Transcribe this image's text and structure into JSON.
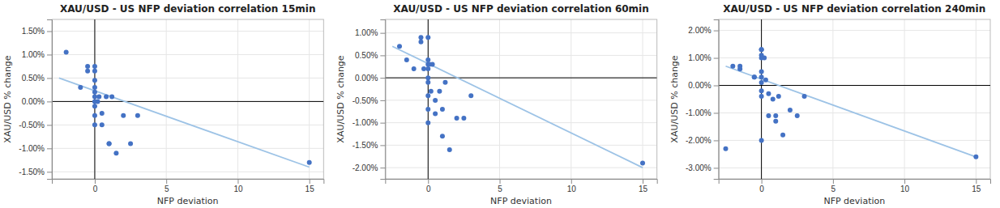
{
  "chart_data": [
    {
      "type": "scatter",
      "title": "XAU/USD - US NFP deviation correlation 15min",
      "xlabel": "NFP deviation",
      "ylabel": "XAU/USD % change",
      "xlim": [
        -3,
        16
      ],
      "ylim": [
        -0.0165,
        0.0175
      ],
      "xticks": [
        0,
        5,
        10,
        15
      ],
      "yticks": [
        {
          "value": -0.015,
          "label": "-1.50%"
        },
        {
          "value": -0.01,
          "label": "-1.00%"
        },
        {
          "value": -0.005,
          "label": "-0.50%"
        },
        {
          "value": 0.0,
          "label": "0.00%"
        },
        {
          "value": 0.005,
          "label": "0.50%"
        },
        {
          "value": 0.01,
          "label": "1.00%"
        },
        {
          "value": 0.015,
          "label": "1.50%"
        }
      ],
      "grid": true,
      "series": [
        {
          "type": "scatter",
          "color": "#4472C4",
          "x": [
            -2.0,
            -1.0,
            -0.5,
            -0.5,
            0.0,
            0.0,
            0.0,
            0.0,
            0.0,
            0.0,
            0.0,
            0.0,
            0.0,
            0.0,
            0.2,
            0.3,
            0.5,
            0.5,
            0.8,
            1.0,
            1.0,
            1.2,
            1.5,
            2.0,
            2.5,
            3.0,
            15.0
          ],
          "values": [
            0.0105,
            0.003,
            0.0075,
            0.0065,
            0.0075,
            0.0065,
            0.0045,
            0.003,
            0.002,
            0.001,
            0.0,
            -0.001,
            -0.003,
            -0.005,
            0.0,
            0.001,
            -0.0025,
            -0.005,
            0.001,
            -0.009,
            -0.009,
            0.001,
            -0.011,
            -0.003,
            -0.009,
            -0.003,
            -0.013
          ]
        },
        {
          "type": "line",
          "color": "#9DC3E6",
          "x": [
            -2.5,
            15
          ],
          "values": [
            0.005,
            -0.014
          ]
        }
      ]
    },
    {
      "type": "scatter",
      "title": "XAU/USD - US NFP deviation correlation 60min",
      "xlabel": "NFP deviation",
      "ylabel": "XAU/USD % change",
      "xlim": [
        -3,
        16
      ],
      "ylim": [
        -0.0225,
        0.013
      ],
      "xticks": [
        0,
        5,
        10,
        15
      ],
      "yticks": [
        {
          "value": -0.02,
          "label": "-2.00%"
        },
        {
          "value": -0.015,
          "label": "-1.50%"
        },
        {
          "value": -0.01,
          "label": "-1.00%"
        },
        {
          "value": -0.005,
          "label": "-0.50%"
        },
        {
          "value": 0.0,
          "label": "0.00%"
        },
        {
          "value": 0.005,
          "label": "0.50%"
        },
        {
          "value": 0.01,
          "label": "1.00%"
        }
      ],
      "grid": true,
      "series": [
        {
          "type": "scatter",
          "color": "#4472C4",
          "x": [
            -2.0,
            -1.5,
            -1.0,
            -0.5,
            -0.5,
            -0.3,
            0.0,
            0.0,
            0.0,
            0.0,
            0.0,
            0.0,
            0.0,
            0.0,
            0.0,
            0.1,
            0.2,
            0.3,
            0.5,
            0.5,
            0.8,
            1.0,
            1.0,
            1.2,
            1.5,
            2.0,
            2.5,
            3.0,
            15.0
          ],
          "values": [
            0.007,
            0.004,
            0.002,
            0.009,
            0.008,
            0.002,
            0.009,
            0.004,
            0.003,
            0.002,
            0.0,
            -0.001,
            -0.004,
            -0.007,
            -0.01,
            0.003,
            -0.003,
            0.003,
            -0.005,
            -0.008,
            -0.003,
            -0.007,
            -0.013,
            -0.001,
            -0.016,
            -0.009,
            -0.009,
            -0.004,
            -0.019
          ]
        },
        {
          "type": "line",
          "color": "#9DC3E6",
          "x": [
            -2.5,
            15
          ],
          "values": [
            0.007,
            -0.02
          ]
        }
      ]
    },
    {
      "type": "scatter",
      "title": "XAU/USD - US NFP deviation correlation 240min",
      "xlabel": "NFP deviation",
      "ylabel": "XAU/USD % change",
      "xlim": [
        -3,
        16
      ],
      "ylim": [
        -0.034,
        0.024
      ],
      "xticks": [
        0,
        5,
        10,
        15
      ],
      "yticks": [
        {
          "value": -0.03,
          "label": "-3.00%"
        },
        {
          "value": -0.02,
          "label": "-2.00%"
        },
        {
          "value": -0.01,
          "label": "-1.00%"
        },
        {
          "value": 0.0,
          "label": "0.00%"
        },
        {
          "value": 0.01,
          "label": "1.00%"
        },
        {
          "value": 0.02,
          "label": "2.00%"
        }
      ],
      "grid": true,
      "series": [
        {
          "type": "scatter",
          "color": "#4472C4",
          "x": [
            -2.5,
            -2.0,
            -1.5,
            -1.5,
            -0.5,
            -0.5,
            0.0,
            0.0,
            0.0,
            0.0,
            0.0,
            0.0,
            0.0,
            0.0,
            0.0,
            0.0,
            0.2,
            0.3,
            0.5,
            0.5,
            0.8,
            1.0,
            1.0,
            1.2,
            1.5,
            2.0,
            2.5,
            3.0,
            15.0
          ],
          "values": [
            -0.023,
            0.007,
            0.006,
            0.007,
            0.003,
            0.003,
            0.013,
            0.013,
            0.011,
            0.01,
            0.005,
            0.003,
            0.001,
            -0.002,
            -0.004,
            -0.02,
            0.01,
            0.002,
            -0.003,
            -0.011,
            -0.005,
            -0.011,
            -0.013,
            -0.004,
            -0.018,
            -0.009,
            -0.011,
            -0.004,
            -0.026
          ]
        },
        {
          "type": "line",
          "color": "#9DC3E6",
          "x": [
            -2.5,
            15
          ],
          "values": [
            0.007,
            -0.026
          ]
        }
      ]
    }
  ]
}
